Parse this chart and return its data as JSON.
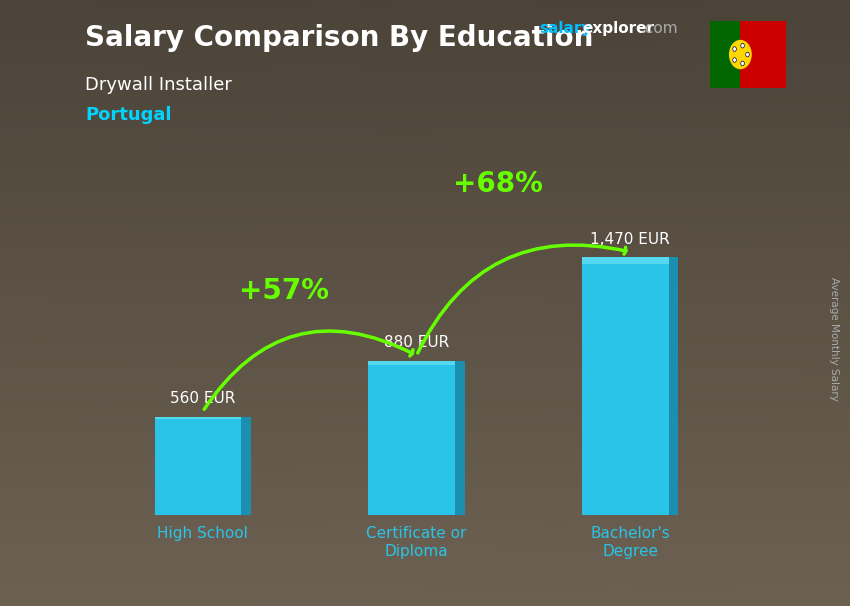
{
  "title": "Salary Comparison By Education",
  "subtitle1": "Drywall Installer",
  "subtitle2": "Portugal",
  "ylabel": "Average Monthly Salary",
  "categories": [
    "High School",
    "Certificate or\nDiploma",
    "Bachelor's\nDegree"
  ],
  "values": [
    560,
    880,
    1470
  ],
  "value_labels": [
    "560 EUR",
    "880 EUR",
    "1,470 EUR"
  ],
  "bar_color_main": "#29C4E8",
  "bar_color_right": "#1A8FB0",
  "bar_color_top": "#55D8F0",
  "pct_labels": [
    "+57%",
    "+68%"
  ],
  "pct_color": "#66FF00",
  "title_color": "#FFFFFF",
  "subtitle1_color": "#FFFFFF",
  "subtitle2_color": "#00D4FF",
  "value_label_color": "#FFFFFF",
  "xticklabel_color": "#29C4E8",
  "ylabel_color": "#AAAAAA",
  "bg_color": "#5a5040",
  "ylim": [
    0,
    1900
  ],
  "fig_width": 8.5,
  "fig_height": 6.06,
  "dpi": 100,
  "bar_positions": [
    0,
    1,
    2
  ],
  "bar_width": 0.45
}
